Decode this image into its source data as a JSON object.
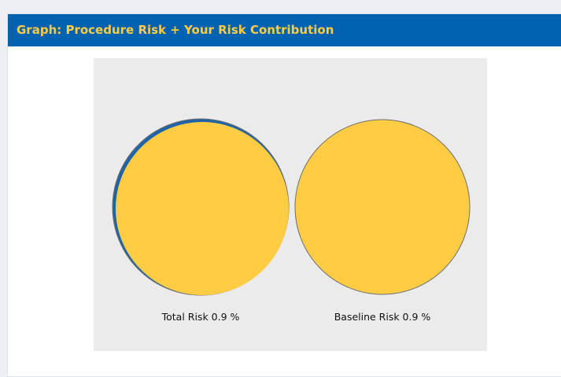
{
  "panel": {
    "title": "Graph: Procedure Risk + Your Risk Contribution"
  },
  "colors": {
    "header_bg": "#0062b1",
    "title_text": "#ffcc44",
    "circle_fill": "#ffcc44",
    "circle_stroke": "#6f6f6f",
    "contribution_ring": "#1f63a8",
    "graph_bg": "#ebebeb"
  },
  "graph": {
    "total": {
      "label": "Total Risk 0.9 %",
      "risk_percent": 0.9
    },
    "baseline": {
      "label": "Baseline Risk 0.9 %",
      "risk_percent": 0.9
    }
  }
}
